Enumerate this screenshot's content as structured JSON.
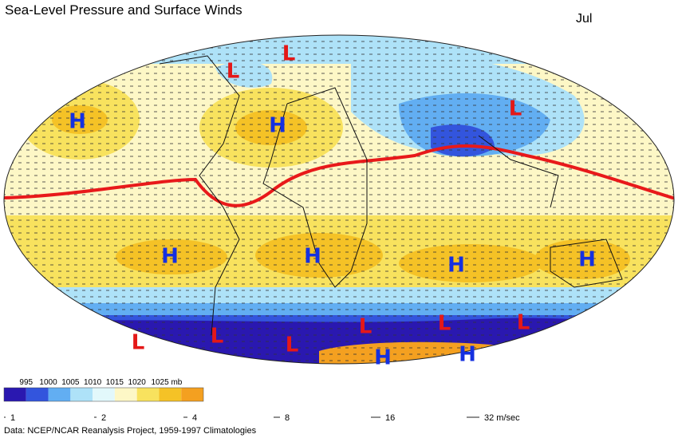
{
  "header": {
    "title": "Sea-Level Pressure and Surface Winds",
    "month": "Jul"
  },
  "pressure_centers": [
    "H",
    "L",
    "L",
    "H",
    "L",
    "H",
    "H",
    "H",
    "H",
    "L",
    "L",
    "L",
    "L",
    "L",
    "L",
    "H",
    "H"
  ],
  "pressure_legend": {
    "labels": [
      "995",
      "1000",
      "1005",
      "1010",
      "1015",
      "1020",
      "1025 mb"
    ],
    "colors": [
      "#2a18b0",
      "#3355dd",
      "#62aef2",
      "#aee2f8",
      "#e2f8fb",
      "#fdf7c6",
      "#f8e25e",
      "#f5c226",
      "#f4a020"
    ]
  },
  "wind_legend": {
    "labels": [
      "1",
      "2",
      "4",
      "8",
      "16",
      "32 m/sec"
    ]
  },
  "footer": {
    "source": "Data:  NCEP/NCAR Reanalysis Project, 1959-1997 Climatologies"
  }
}
